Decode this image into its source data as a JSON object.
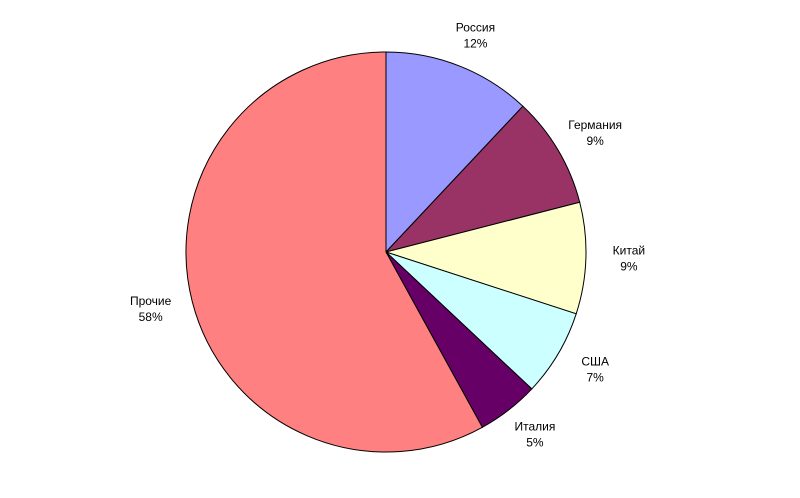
{
  "chart_data": {
    "type": "pie",
    "categories": [
      "Россия",
      "Германия",
      "Китай",
      "США",
      "Италия",
      "Прочие"
    ],
    "values": [
      12,
      9,
      9,
      7,
      5,
      58
    ],
    "value_labels": [
      "12%",
      "9%",
      "9%",
      "7%",
      "5%",
      "58%"
    ],
    "colors": [
      "#9999ff",
      "#993366",
      "#ffffcc",
      "#ccffff",
      "#660066",
      "#ff8080"
    ]
  }
}
